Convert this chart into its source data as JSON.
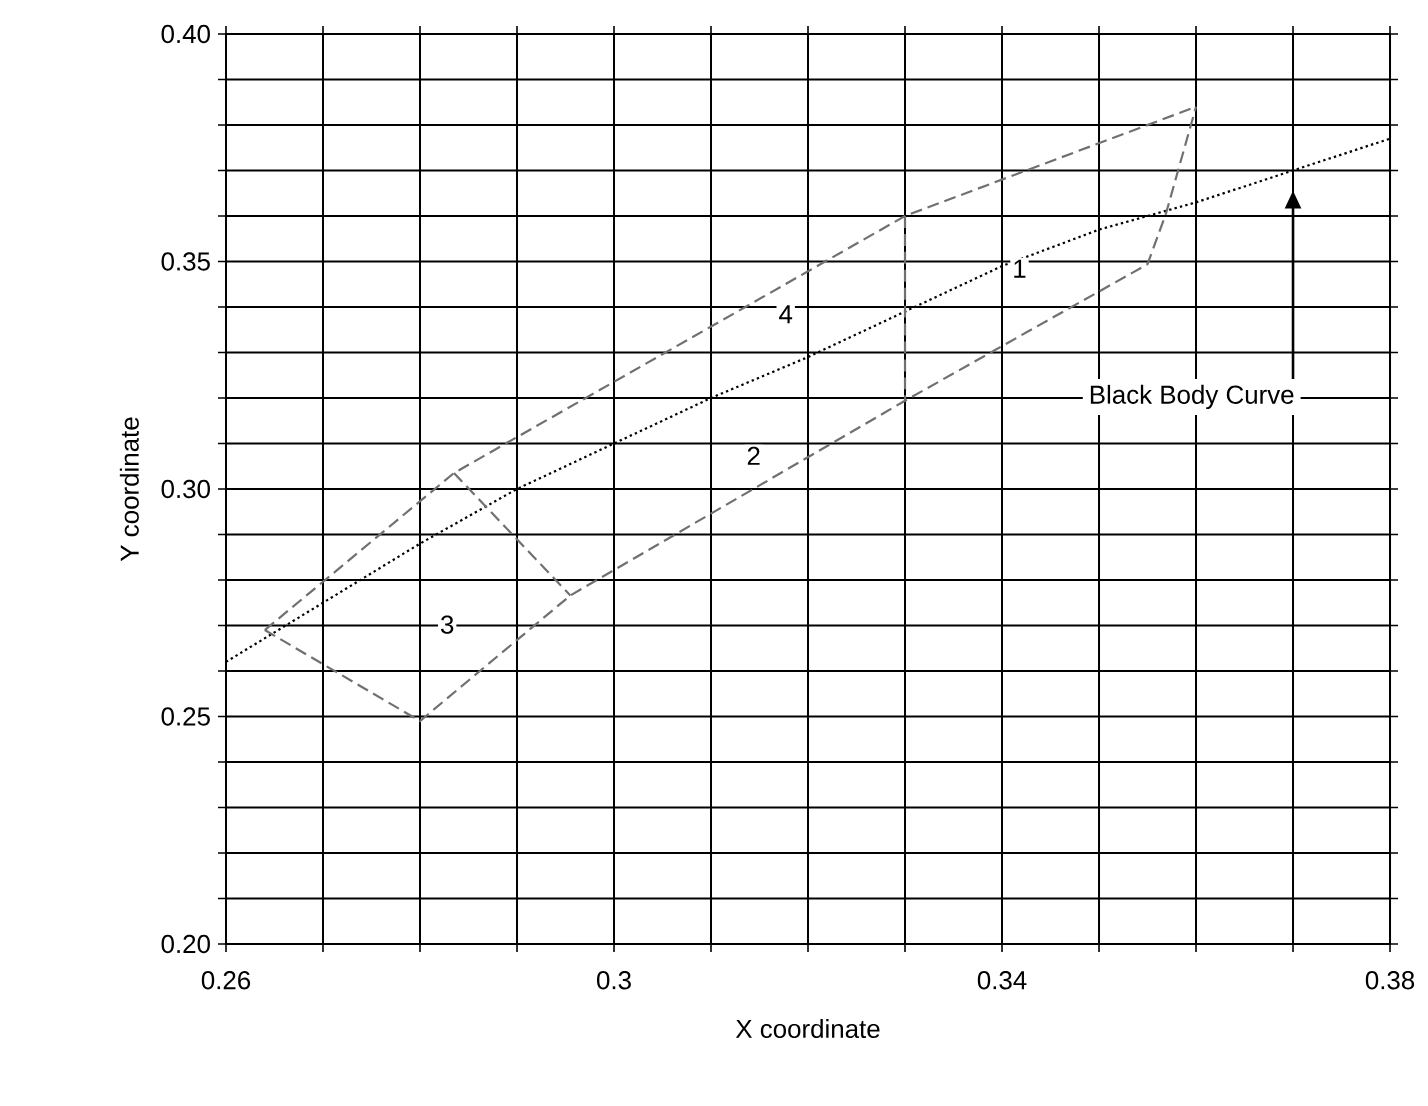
{
  "chart_data": {
    "type": "line",
    "xlabel": "X coordinate",
    "ylabel": "Y coordinate",
    "xlim": [
      0.26,
      0.38
    ],
    "ylim": [
      0.2,
      0.4
    ],
    "xticks": [
      0.26,
      {
        "value": 0.27,
        "label": null
      },
      {
        "value": 0.28,
        "label": null
      },
      {
        "value": 0.29,
        "label": null
      },
      0.3,
      {
        "value": 0.31,
        "label": null
      },
      {
        "value": 0.32,
        "label": null
      },
      {
        "value": 0.33,
        "label": null
      },
      0.34,
      {
        "value": 0.35,
        "label": null
      },
      {
        "value": 0.36,
        "label": null
      },
      {
        "value": 0.37,
        "label": null
      },
      0.38
    ],
    "yticks": [
      {
        "value": 0.2,
        "label": "0.20"
      },
      {
        "value": 0.21,
        "label": null
      },
      {
        "value": 0.22,
        "label": null
      },
      {
        "value": 0.23,
        "label": null
      },
      {
        "value": 0.24,
        "label": null
      },
      {
        "value": 0.25,
        "label": "0.25"
      },
      {
        "value": 0.26,
        "label": null
      },
      {
        "value": 0.27,
        "label": null
      },
      {
        "value": 0.28,
        "label": null
      },
      {
        "value": 0.29,
        "label": null
      },
      {
        "value": 0.3,
        "label": "0.30"
      },
      {
        "value": 0.31,
        "label": null
      },
      {
        "value": 0.32,
        "label": null
      },
      {
        "value": 0.33,
        "label": null
      },
      {
        "value": 0.34,
        "label": null
      },
      {
        "value": 0.35,
        "label": "0.35"
      },
      {
        "value": 0.36,
        "label": null
      },
      {
        "value": 0.37,
        "label": null
      },
      {
        "value": 0.38,
        "label": null
      },
      {
        "value": 0.39,
        "label": null
      },
      {
        "value": 0.4,
        "label": "0.40"
      }
    ],
    "grid": true,
    "series": [
      {
        "name": "Black Body Curve",
        "color": "#000000",
        "line_style": "dotted",
        "x": [
          0.26,
          0.27,
          0.28,
          0.29,
          0.3,
          0.31,
          0.32,
          0.33,
          0.34,
          0.35,
          0.36,
          0.37,
          0.38
        ],
        "values": [
          0.262,
          0.275,
          0.288,
          0.3,
          0.31,
          0.32,
          0.329,
          0.339,
          0.349,
          0.357,
          0.363,
          0.37,
          0.377
        ]
      },
      {
        "color": "#707070",
        "line_style": "dashed",
        "x": [
          0.264,
          0.2835,
          0.33,
          0.36
        ],
        "values": [
          0.269,
          0.3035,
          0.36,
          0.384
        ]
      },
      {
        "color": "#707070",
        "line_style": "dashed",
        "x": [
          0.264,
          0.28,
          0.2955,
          0.33,
          0.355,
          0.3569,
          0.36
        ],
        "values": [
          0.269,
          0.249,
          0.2766,
          0.3194,
          0.3494,
          0.3605,
          0.384
        ]
      },
      {
        "color": "#707070",
        "line_style": "dashed",
        "x": [
          0.33,
          0.33
        ],
        "values": [
          0.36,
          0.3194
        ]
      },
      {
        "color": "#707070",
        "line_style": "dashed",
        "x": [
          0.2835,
          0.2955
        ],
        "values": [
          0.3035,
          0.2766
        ]
      }
    ],
    "annotations": [
      {
        "text": "1",
        "x": 0.3418,
        "y": 0.3484
      },
      {
        "text": "2",
        "x": 0.3144,
        "y": 0.3073
      },
      {
        "text": "3",
        "x": 0.2828,
        "y": 0.2702
      },
      {
        "text": "4",
        "x": 0.3177,
        "y": 0.3384
      }
    ]
  }
}
